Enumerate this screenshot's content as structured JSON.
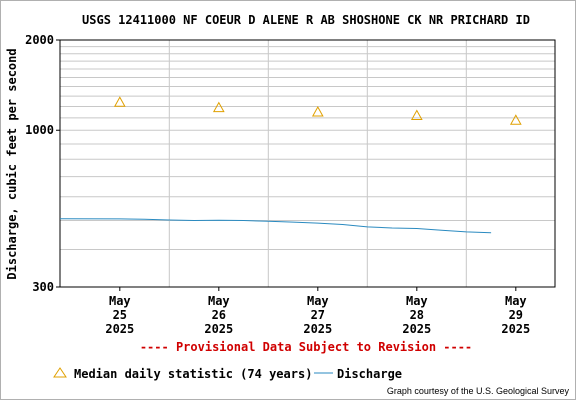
{
  "chart_data": {
    "type": "line",
    "title": "USGS 12411000 NF COEUR D ALENE R AB SHOSHONE CK NR PRICHARD ID",
    "ylabel": "Discharge, cubic feet per second",
    "xlabel": "",
    "y_scale": "log",
    "ylim": [
      300,
      2000
    ],
    "y_ticks": [
      300,
      1000,
      2000
    ],
    "y_tick_labels": [
      "300",
      "1000",
      "2000"
    ],
    "x_range": [
      "2025-05-24T21:30",
      "2025-05-29T21:30"
    ],
    "x_ticks": [
      {
        "date": "2025-05-25T12:00",
        "month": "May",
        "day": "25",
        "year": "2025"
      },
      {
        "date": "2025-05-26T12:00",
        "month": "May",
        "day": "26",
        "year": "2025"
      },
      {
        "date": "2025-05-27T12:00",
        "month": "May",
        "day": "27",
        "year": "2025"
      },
      {
        "date": "2025-05-28T12:00",
        "month": "May",
        "day": "28",
        "year": "2025"
      },
      {
        "date": "2025-05-29T12:00",
        "month": "May",
        "day": "29",
        "year": "2025"
      }
    ],
    "grid": true,
    "legend_position": "bottom",
    "series": [
      {
        "name": "Median daily statistic (74 years)",
        "kind": "marker",
        "marker": "triangle",
        "color": "#e0a000",
        "points": [
          {
            "x": "2025-05-25T12:00",
            "y": 1240
          },
          {
            "x": "2025-05-26T12:00",
            "y": 1190
          },
          {
            "x": "2025-05-27T12:00",
            "y": 1150
          },
          {
            "x": "2025-05-28T12:00",
            "y": 1120
          },
          {
            "x": "2025-05-29T12:00",
            "y": 1080
          }
        ]
      },
      {
        "name": "Discharge",
        "kind": "line",
        "color": "#2a8ac0",
        "points": [
          {
            "x": "2025-05-24T21:30",
            "y": 507
          },
          {
            "x": "2025-05-25T12:00",
            "y": 506
          },
          {
            "x": "2025-05-25T18:00",
            "y": 505
          },
          {
            "x": "2025-05-26T00:00",
            "y": 502
          },
          {
            "x": "2025-05-26T06:00",
            "y": 500
          },
          {
            "x": "2025-05-26T12:00",
            "y": 501
          },
          {
            "x": "2025-05-26T18:00",
            "y": 500
          },
          {
            "x": "2025-05-27T00:00",
            "y": 497
          },
          {
            "x": "2025-05-27T06:00",
            "y": 494
          },
          {
            "x": "2025-05-27T12:00",
            "y": 490
          },
          {
            "x": "2025-05-27T18:00",
            "y": 485
          },
          {
            "x": "2025-05-28T00:00",
            "y": 476
          },
          {
            "x": "2025-05-28T06:00",
            "y": 472
          },
          {
            "x": "2025-05-28T12:00",
            "y": 470
          },
          {
            "x": "2025-05-28T18:00",
            "y": 464
          },
          {
            "x": "2025-05-29T00:00",
            "y": 458
          },
          {
            "x": "2025-05-29T06:00",
            "y": 455
          }
        ]
      }
    ]
  },
  "provisional_notice": "---- Provisional Data Subject to Revision ----",
  "legend": {
    "median_label": "Median daily statistic (74 years)",
    "discharge_label": "Discharge"
  },
  "credit": "Graph courtesy of the U.S. Geological Survey",
  "colors": {
    "notice": "#d00000",
    "grid": "#c8c8c8",
    "axis": "#000000"
  }
}
